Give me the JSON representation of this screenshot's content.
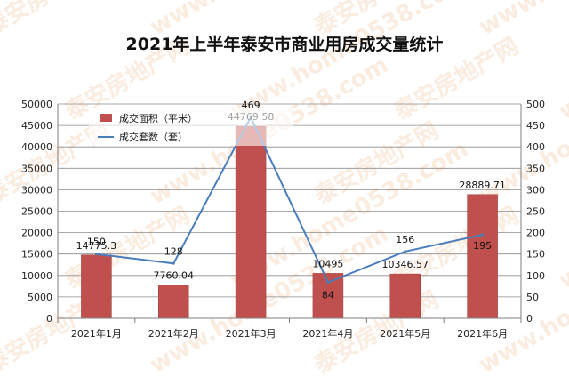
{
  "chart_data": {
    "type": "bar+line",
    "title": "2021年上半年泰安市商业用房成交量统计",
    "categories": [
      "2021年1月",
      "2021年2月",
      "2021年3月",
      "2021年4月",
      "2021年5月",
      "2021年6月"
    ],
    "series": [
      {
        "name": "成交面积（平米）",
        "type": "bar",
        "axis": "left",
        "color": "#c0504d",
        "values": [
          14775.3,
          7760.04,
          44769.58,
          10495,
          10346.57,
          28889.71
        ],
        "labels": [
          "14775.3",
          "7760.04",
          "44769.58",
          "10495",
          "10346.57",
          "28889.71"
        ]
      },
      {
        "name": "成交套数（套）",
        "type": "line",
        "axis": "right",
        "color": "#4a7ebb",
        "values": [
          150,
          128,
          469,
          84,
          156,
          195
        ],
        "labels": [
          "150",
          "128",
          "469",
          "84",
          "156",
          "195"
        ]
      }
    ],
    "y_left": {
      "min": 0,
      "max": 50000,
      "step": 5000
    },
    "y_right": {
      "min": 0,
      "max": 500,
      "step": 50
    },
    "grid": true,
    "legend_position": "top-left"
  },
  "watermark": {
    "texts": [
      "泰安房地产网",
      "www.home0538.com"
    ],
    "color": "#f4c9a8"
  }
}
